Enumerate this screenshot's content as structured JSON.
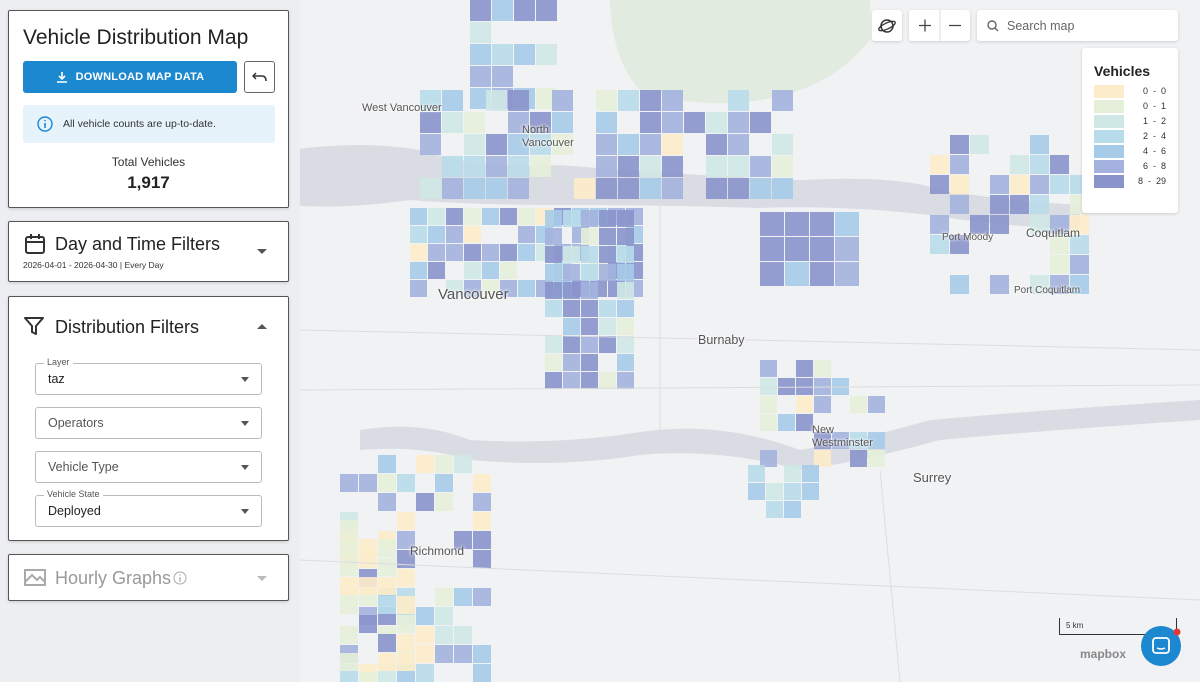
{
  "header": {
    "title": "Vehicle Distribution Map",
    "download_button": "DOWNLOAD MAP DATA",
    "notice": "All vehicle counts are up-to-date.",
    "total_label": "Total Vehicles",
    "total_value": "1,917"
  },
  "day_time_filters": {
    "title": "Day and Time Filters",
    "summary": "2026-04-01 - 2026-04-30 | Every Day"
  },
  "distribution_filters": {
    "title": "Distribution Filters",
    "fields": [
      {
        "label": "Layer",
        "value": "taz"
      },
      {
        "value": "Operators"
      },
      {
        "value": "Vehicle Type"
      },
      {
        "label": "Vehicle State",
        "value": "Deployed"
      }
    ]
  },
  "hourly_graphs": {
    "title": "Hourly Graphs"
  },
  "map": {
    "search_placeholder": "Search map",
    "legend": {
      "title": "Vehicles",
      "ranges": [
        {
          "label": "0  -  0",
          "color": "#fcecc9"
        },
        {
          "label": "0  -  1",
          "color": "#e5efd9"
        },
        {
          "label": "1  -  2",
          "color": "#cfe8e6"
        },
        {
          "label": "2  -  4",
          "color": "#b8dcea"
        },
        {
          "label": "4  -  6",
          "color": "#a6cbe8"
        },
        {
          "label": "6  -  8",
          "color": "#a3b2de"
        },
        {
          "label": "8  -  29",
          "color": "#8a93cb"
        }
      ]
    },
    "places": [
      "West Vancouver",
      "North Vancouver",
      "Vancouver",
      "Burnaby",
      "New Westminster",
      "Richmond",
      "Surrey",
      "Coquitlam",
      "Port Moody",
      "Port Coquitlam"
    ],
    "scale": "5 km",
    "attribution": "mapbox"
  }
}
